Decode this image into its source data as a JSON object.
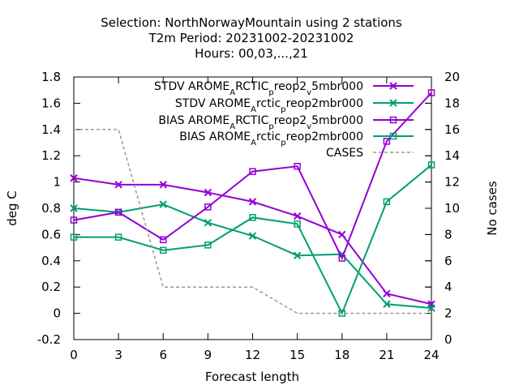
{
  "chart_data": {
    "type": "line",
    "title_lines": [
      "Selection: NorthNorwayMountain using     2 stations",
      "T2m   Period: 20231002-20231002",
      "Hours:  00,03,...,21"
    ],
    "xlabel": "Forecast length",
    "ylabel": "deg C",
    "y2label": "No cases",
    "x": [
      0,
      3,
      6,
      9,
      12,
      15,
      18,
      21,
      24
    ],
    "x_ticks": [
      "0",
      "3",
      "6",
      "9",
      "12",
      "15",
      "18",
      "21",
      "24"
    ],
    "xlim": [
      0,
      24
    ],
    "ylim": [
      -0.2,
      1.8
    ],
    "y_ticks": [
      "-0.2",
      "0",
      "0.2",
      "0.4",
      "0.6",
      "0.8",
      "1",
      "1.2",
      "1.4",
      "1.6",
      "1.8"
    ],
    "y2lim": [
      0,
      20
    ],
    "y2_ticks": [
      "0",
      "2",
      "4",
      "6",
      "8",
      "10",
      "12",
      "14",
      "16",
      "18",
      "20"
    ],
    "legend_position": "top-right",
    "grid": false,
    "series": [
      {
        "legend_text": "STDV AROME_ARCTIC_preop2_v5mbr000",
        "legend_parts": [
          {
            "t": "STDV AROME",
            "s": 0
          },
          {
            "t": "A",
            "s": 1
          },
          {
            "t": "RCTIC",
            "s": 0
          },
          {
            "t": "p",
            "s": 1
          },
          {
            "t": "reop2",
            "s": 0
          },
          {
            "t": "v",
            "s": 1
          },
          {
            "t": "5mbr000",
            "s": 0
          }
        ],
        "color": "#9400d3",
        "marker": "x",
        "axis": "y1",
        "dashed": false,
        "values": [
          1.03,
          0.98,
          0.98,
          0.92,
          0.85,
          0.74,
          0.6,
          0.15,
          0.07
        ]
      },
      {
        "legend_text": "STDV AROME_Arctic_preop2mbr000",
        "legend_parts": [
          {
            "t": "STDV AROME",
            "s": 0
          },
          {
            "t": "A",
            "s": 1
          },
          {
            "t": "rctic",
            "s": 0
          },
          {
            "t": "p",
            "s": 1
          },
          {
            "t": "reop2mbr000",
            "s": 0
          }
        ],
        "color": "#009e73",
        "marker": "x",
        "axis": "y1",
        "dashed": false,
        "values": [
          0.8,
          0.77,
          0.83,
          0.69,
          0.59,
          0.44,
          0.45,
          0.07,
          0.04
        ]
      },
      {
        "legend_text": "BIAS AROME_ARCTIC_preop2_v5mbr000",
        "legend_parts": [
          {
            "t": "BIAS AROME",
            "s": 0
          },
          {
            "t": "A",
            "s": 1
          },
          {
            "t": "RCTIC",
            "s": 0
          },
          {
            "t": "p",
            "s": 1
          },
          {
            "t": "reop2",
            "s": 0
          },
          {
            "t": "v",
            "s": 1
          },
          {
            "t": "5mbr000",
            "s": 0
          }
        ],
        "color": "#9400d3",
        "marker": "square",
        "axis": "y1",
        "dashed": false,
        "values": [
          0.71,
          0.77,
          0.56,
          0.81,
          1.08,
          1.12,
          0.42,
          1.31,
          1.68
        ]
      },
      {
        "legend_text": "BIAS AROME_Arctic_preop2mbr000",
        "legend_parts": [
          {
            "t": "BIAS AROME",
            "s": 0
          },
          {
            "t": "A",
            "s": 1
          },
          {
            "t": "rctic",
            "s": 0
          },
          {
            "t": "p",
            "s": 1
          },
          {
            "t": "reop2mbr000",
            "s": 0
          }
        ],
        "color": "#009e73",
        "marker": "square",
        "axis": "y1",
        "dashed": false,
        "values": [
          0.58,
          0.58,
          0.48,
          0.52,
          0.73,
          0.68,
          0.0,
          0.85,
          1.13
        ]
      },
      {
        "legend_text": "CASES",
        "legend_parts": [
          {
            "t": "CASES",
            "s": 0
          }
        ],
        "color": "#999999",
        "marker": "none",
        "axis": "y2",
        "dashed": true,
        "values": [
          16,
          16,
          4,
          4,
          4,
          2,
          2,
          2,
          2
        ]
      }
    ]
  }
}
